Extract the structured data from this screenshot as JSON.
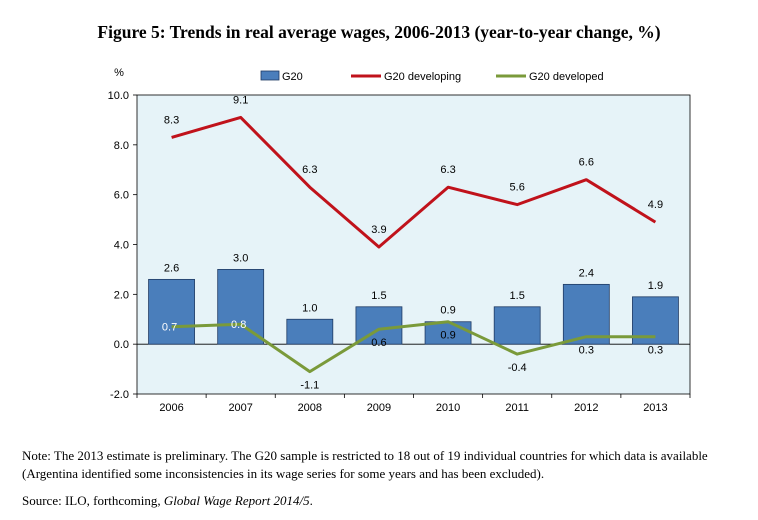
{
  "figure": {
    "title": "Figure 5:  Trends in real average wages, 2006-2013 (year-to-year change, %)",
    "note": "Note: The 2013 estimate is preliminary.  The G20 sample is restricted to 18 out of 19 individual countries for which data is available (Argentina identified some inconsistencies in its wage series for some years and has been excluded).",
    "source_prefix": "Source: ILO, forthcoming, ",
    "source_italic": "Global Wage Report 2014/5",
    "source_suffix": "."
  },
  "chart_data": {
    "type": "bar",
    "categories": [
      "2006",
      "2007",
      "2008",
      "2009",
      "2010",
      "2011",
      "2012",
      "2013"
    ],
    "series": [
      {
        "name": "G20",
        "type": "bar",
        "color": "#4a7ebb",
        "values": [
          2.6,
          3.0,
          1.0,
          1.5,
          0.9,
          1.5,
          2.4,
          1.9
        ],
        "labels": [
          "2.6",
          "3.0",
          "1.0",
          "1.5",
          "0.9",
          "1.5",
          "2.4",
          "1.9"
        ]
      },
      {
        "name": "G20 developing",
        "type": "line",
        "color": "#c0121b",
        "values": [
          8.3,
          9.1,
          6.3,
          3.9,
          6.3,
          5.6,
          6.6,
          4.9
        ],
        "labels": [
          "8.3",
          "9.1",
          "6.3",
          "3.9",
          "6.3",
          "5.6",
          "6.6",
          "4.9"
        ]
      },
      {
        "name": "G20 developed",
        "type": "line",
        "color": "#7a9a3a",
        "values": [
          0.7,
          0.8,
          -1.1,
          0.6,
          0.9,
          -0.4,
          0.3,
          0.3
        ],
        "labels": [
          "0.7",
          "0.8",
          "-1.1",
          "0.6",
          "0.9",
          "-0.4",
          "0.3",
          "0.3"
        ]
      }
    ],
    "ylabel": "%",
    "ylim": [
      -2.0,
      10.0
    ],
    "yticks": [
      "10.0",
      "8.0",
      "6.0",
      "4.0",
      "2.0",
      "0.0",
      "-2.0"
    ],
    "ytick_values": [
      10,
      8,
      6,
      4,
      2,
      0,
      -2
    ],
    "grid": false,
    "legend": "top",
    "plot_background": "#e6f3f8"
  }
}
